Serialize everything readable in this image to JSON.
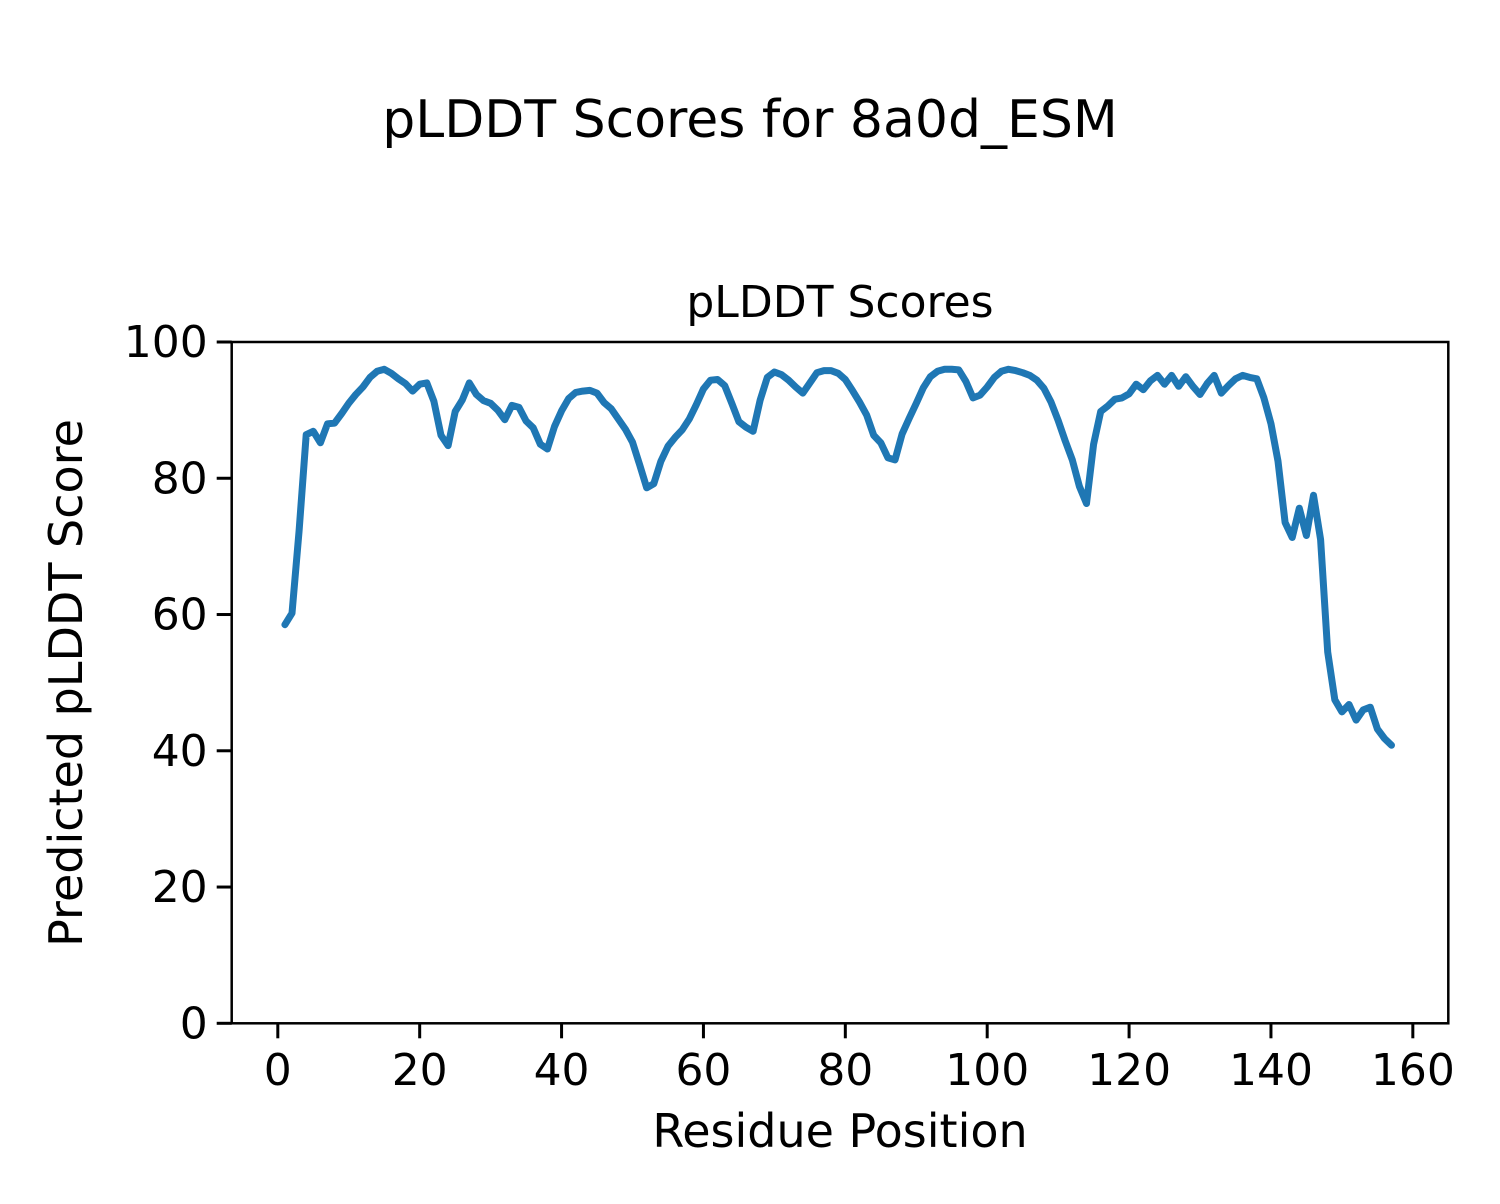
{
  "figure": {
    "suptitle": "pLDDT Scores for 8a0d_ESM",
    "background_color": "#ffffff",
    "text_color": "#000000"
  },
  "chart_data": {
    "type": "line",
    "title": "pLDDT Scores",
    "xlabel": "Residue Position",
    "ylabel": "Predicted pLDDT Score",
    "xlim": [
      -6.5,
      165
    ],
    "ylim": [
      0,
      100
    ],
    "x_ticks": [
      0,
      20,
      40,
      60,
      80,
      100,
      120,
      140,
      160
    ],
    "y_ticks": [
      0,
      20,
      40,
      60,
      80,
      100
    ],
    "grid": false,
    "legend": "none",
    "line_color": "#1f77b4",
    "x": {
      "start": 1,
      "end": 157,
      "step": 1
    },
    "series": [
      {
        "name": "pLDDT",
        "values": [
          58.5,
          60.2,
          72.3,
          86.4,
          86.9,
          85.2,
          88.0,
          88.1,
          89.5,
          91.0,
          92.3,
          93.4,
          94.8,
          95.7,
          96.0,
          95.4,
          94.6,
          93.9,
          92.8,
          93.8,
          94.0,
          91.3,
          86.3,
          84.8,
          89.8,
          91.5,
          94.0,
          92.3,
          91.4,
          91.0,
          90.0,
          88.6,
          90.7,
          90.4,
          88.4,
          87.4,
          85.0,
          84.3,
          87.6,
          89.9,
          91.7,
          92.6,
          92.8,
          92.9,
          92.5,
          91.1,
          90.2,
          88.7,
          87.2,
          85.3,
          82.0,
          78.6,
          79.2,
          82.5,
          84.7,
          86.0,
          87.1,
          88.7,
          90.8,
          93.1,
          94.4,
          94.5,
          93.6,
          91.0,
          88.3,
          87.5,
          86.9,
          91.5,
          94.8,
          95.6,
          95.2,
          94.4,
          93.4,
          92.5,
          94.0,
          95.5,
          95.8,
          95.8,
          95.4,
          94.5,
          92.9,
          91.2,
          89.3,
          86.3,
          85.2,
          83.0,
          82.7,
          86.5,
          88.8,
          91.0,
          93.3,
          94.9,
          95.7,
          96.0,
          96.0,
          95.9,
          94.2,
          91.8,
          92.2,
          93.4,
          94.8,
          95.7,
          96.0,
          95.8,
          95.5,
          95.1,
          94.4,
          93.2,
          91.2,
          88.5,
          85.5,
          82.7,
          78.8,
          76.3,
          85.0,
          89.8,
          90.6,
          91.6,
          91.8,
          92.4,
          93.8,
          93.0,
          94.3,
          95.1,
          93.8,
          95.1,
          93.5,
          94.9,
          93.5,
          92.3,
          93.9,
          95.1,
          92.5,
          93.6,
          94.6,
          95.1,
          94.8,
          94.6,
          91.8,
          88.0,
          82.5,
          73.5,
          71.3,
          75.6,
          71.6,
          77.5,
          71.0,
          54.5,
          47.5,
          45.7,
          46.8,
          44.5,
          46.0,
          46.4,
          43.2,
          41.8,
          40.8
        ]
      }
    ]
  }
}
